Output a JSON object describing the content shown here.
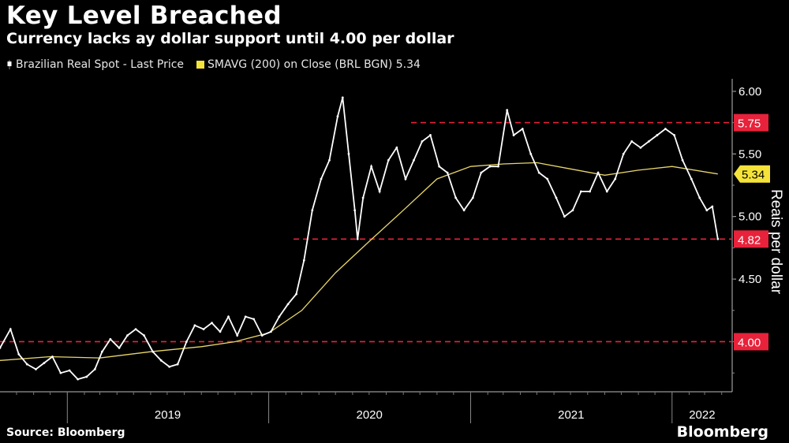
{
  "header": {
    "title": "Key Level Breached",
    "subtitle": "Currency lacks ay dollar support until 4.00 per dollar"
  },
  "legend": {
    "series1": "Brazilian Real Spot - Last Price",
    "series2": "SMAVG (200)  on Close (BRL BGN) 5.34"
  },
  "footer": {
    "source": "Source: Bloomberg",
    "brand": "Bloomberg"
  },
  "colors": {
    "background": "#000000",
    "price": "#ffffff",
    "sma": "#e8d66a",
    "reference": "#e8223a",
    "sma_tag": "#f5e33a"
  },
  "chart_data": {
    "type": "line",
    "title": "Key Level Breached",
    "subtitle": "Currency lacks ay dollar support until 4.00 per dollar",
    "ylabel": "Reais per dollar",
    "xlabel": "",
    "ylim": [
      3.6,
      6.1
    ],
    "y_ticks": [
      "6.00",
      "5.50",
      "5.00",
      "4.50"
    ],
    "x_tick_labels": [
      "2019",
      "2020",
      "2021",
      "2022"
    ],
    "xlim": [
      "2018-09-01",
      "2022-04-20"
    ],
    "grid": false,
    "legend_position": "top-left",
    "reference_lines": [
      {
        "value": 5.75,
        "label": "5.75",
        "start": "2020-09-15"
      },
      {
        "value": 4.82,
        "label": "4.82",
        "start": "2020-02-15"
      },
      {
        "value": 4.0,
        "label": "4.00",
        "start": "2018-09-01"
      }
    ],
    "last_value_tags": [
      {
        "value": 5.34,
        "label": "5.34",
        "series": "SMAVG (200)  on Close (BRL BGN) 5.34"
      }
    ],
    "series": [
      {
        "name": "Brazilian Real Spot - Last Price",
        "points": [
          [
            "2018-09-01",
            3.95
          ],
          [
            "2018-09-20",
            4.1
          ],
          [
            "2018-10-05",
            3.9
          ],
          [
            "2018-10-20",
            3.82
          ],
          [
            "2018-11-05",
            3.78
          ],
          [
            "2018-11-20",
            3.83
          ],
          [
            "2018-12-05",
            3.88
          ],
          [
            "2018-12-20",
            3.75
          ],
          [
            "2019-01-05",
            3.77
          ],
          [
            "2019-01-20",
            3.7
          ],
          [
            "2019-02-05",
            3.72
          ],
          [
            "2019-02-20",
            3.78
          ],
          [
            "2019-03-05",
            3.92
          ],
          [
            "2019-03-20",
            4.02
          ],
          [
            "2019-04-05",
            3.95
          ],
          [
            "2019-04-20",
            4.05
          ],
          [
            "2019-05-05",
            4.1
          ],
          [
            "2019-05-20",
            4.05
          ],
          [
            "2019-06-05",
            3.92
          ],
          [
            "2019-06-20",
            3.85
          ],
          [
            "2019-07-05",
            3.8
          ],
          [
            "2019-07-20",
            3.82
          ],
          [
            "2019-08-05",
            4.0
          ],
          [
            "2019-08-20",
            4.13
          ],
          [
            "2019-09-05",
            4.1
          ],
          [
            "2019-09-20",
            4.15
          ],
          [
            "2019-10-05",
            4.08
          ],
          [
            "2019-10-20",
            4.2
          ],
          [
            "2019-11-05",
            4.05
          ],
          [
            "2019-11-20",
            4.2
          ],
          [
            "2019-12-05",
            4.18
          ],
          [
            "2019-12-20",
            4.05
          ],
          [
            "2020-01-05",
            4.08
          ],
          [
            "2020-01-20",
            4.2
          ],
          [
            "2020-02-05",
            4.3
          ],
          [
            "2020-02-20",
            4.38
          ],
          [
            "2020-03-05",
            4.65
          ],
          [
            "2020-03-20",
            5.05
          ],
          [
            "2020-04-05",
            5.3
          ],
          [
            "2020-04-20",
            5.45
          ],
          [
            "2020-05-05",
            5.8
          ],
          [
            "2020-05-14",
            5.95
          ],
          [
            "2020-05-25",
            5.5
          ],
          [
            "2020-06-05",
            5.05
          ],
          [
            "2020-06-10",
            4.82
          ],
          [
            "2020-06-20",
            5.15
          ],
          [
            "2020-07-05",
            5.4
          ],
          [
            "2020-07-20",
            5.2
          ],
          [
            "2020-08-05",
            5.45
          ],
          [
            "2020-08-20",
            5.55
          ],
          [
            "2020-09-05",
            5.3
          ],
          [
            "2020-09-20",
            5.45
          ],
          [
            "2020-10-05",
            5.6
          ],
          [
            "2020-10-20",
            5.65
          ],
          [
            "2020-11-05",
            5.4
          ],
          [
            "2020-11-20",
            5.35
          ],
          [
            "2020-12-05",
            5.15
          ],
          [
            "2020-12-20",
            5.05
          ],
          [
            "2021-01-05",
            5.15
          ],
          [
            "2021-01-20",
            5.35
          ],
          [
            "2021-02-05",
            5.4
          ],
          [
            "2021-02-20",
            5.4
          ],
          [
            "2021-03-08",
            5.85
          ],
          [
            "2021-03-20",
            5.65
          ],
          [
            "2021-04-05",
            5.7
          ],
          [
            "2021-04-20",
            5.5
          ],
          [
            "2021-05-05",
            5.35
          ],
          [
            "2021-05-20",
            5.3
          ],
          [
            "2021-06-05",
            5.15
          ],
          [
            "2021-06-20",
            5.0
          ],
          [
            "2021-07-05",
            5.05
          ],
          [
            "2021-07-20",
            5.2
          ],
          [
            "2021-08-05",
            5.2
          ],
          [
            "2021-08-20",
            5.35
          ],
          [
            "2021-09-05",
            5.2
          ],
          [
            "2021-09-20",
            5.3
          ],
          [
            "2021-10-05",
            5.5
          ],
          [
            "2021-10-20",
            5.6
          ],
          [
            "2021-11-05",
            5.55
          ],
          [
            "2021-11-20",
            5.6
          ],
          [
            "2021-12-05",
            5.65
          ],
          [
            "2021-12-20",
            5.7
          ],
          [
            "2022-01-05",
            5.65
          ],
          [
            "2022-01-20",
            5.45
          ],
          [
            "2022-02-05",
            5.3
          ],
          [
            "2022-02-20",
            5.15
          ],
          [
            "2022-03-05",
            5.05
          ],
          [
            "2022-03-15",
            5.08
          ],
          [
            "2022-03-25",
            4.82
          ]
        ]
      },
      {
        "name": "SMAVG (200)  on Close (BRL BGN) 5.34",
        "points": [
          [
            "2018-09-01",
            3.85
          ],
          [
            "2018-12-01",
            3.88
          ],
          [
            "2019-03-01",
            3.87
          ],
          [
            "2019-06-01",
            3.92
          ],
          [
            "2019-09-01",
            3.96
          ],
          [
            "2019-11-01",
            4.0
          ],
          [
            "2020-01-01",
            4.07
          ],
          [
            "2020-03-01",
            4.25
          ],
          [
            "2020-05-01",
            4.55
          ],
          [
            "2020-07-01",
            4.8
          ],
          [
            "2020-09-01",
            5.05
          ],
          [
            "2020-11-01",
            5.3
          ],
          [
            "2021-01-01",
            5.4
          ],
          [
            "2021-03-01",
            5.42
          ],
          [
            "2021-05-01",
            5.43
          ],
          [
            "2021-07-01",
            5.38
          ],
          [
            "2021-09-01",
            5.33
          ],
          [
            "2021-11-01",
            5.37
          ],
          [
            "2022-01-01",
            5.4
          ],
          [
            "2022-03-25",
            5.34
          ]
        ]
      }
    ]
  }
}
